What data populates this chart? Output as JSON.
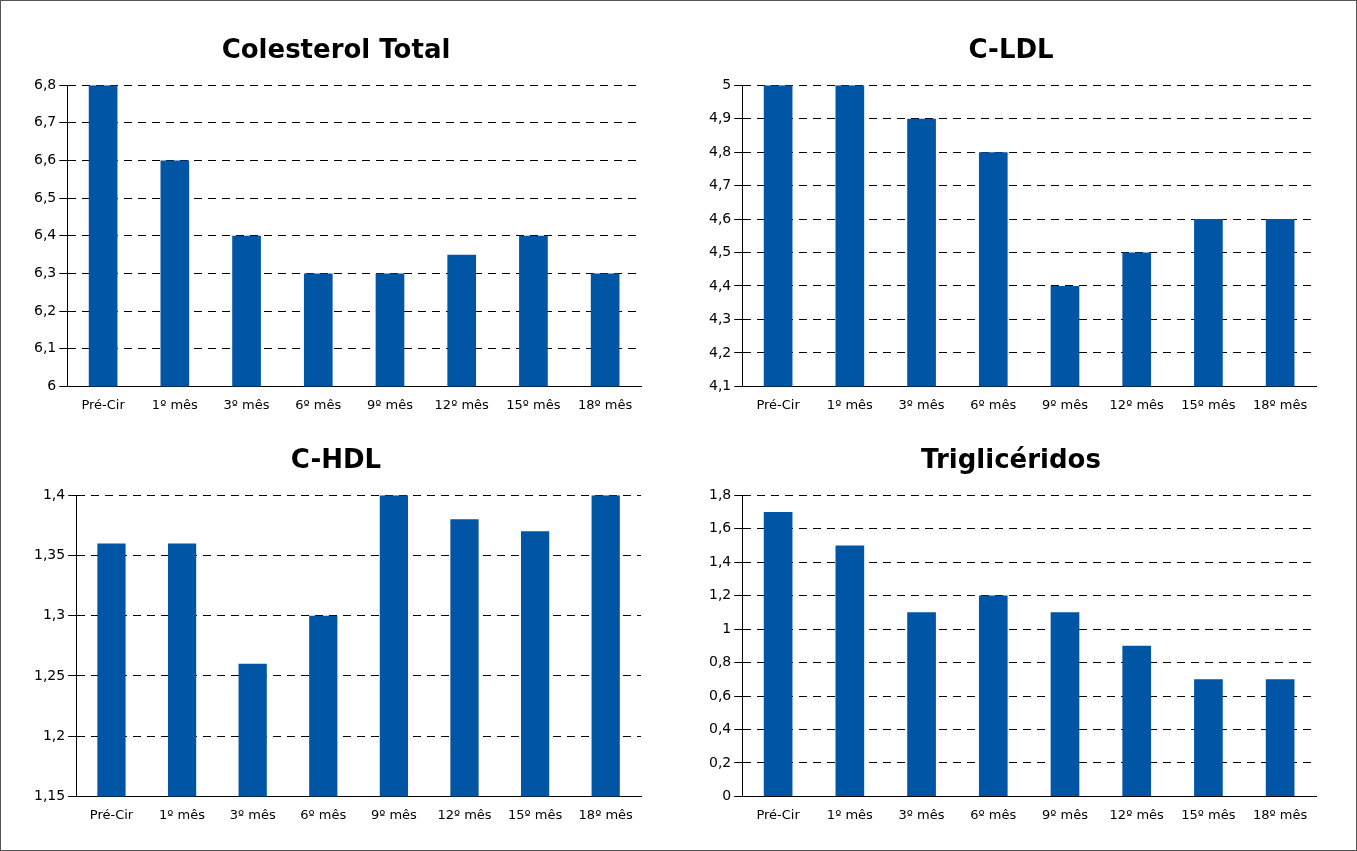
{
  "chart_data": [
    {
      "type": "bar",
      "title": "Colesterol Total",
      "categories": [
        "Pré-Cir",
        "1º mês",
        "3º mês",
        "6º mês",
        "9º mês",
        "12º mês",
        "15º mês",
        "18º mês"
      ],
      "values": [
        6.8,
        6.6,
        6.4,
        6.3,
        6.3,
        6.35,
        6.4,
        6.3
      ],
      "color": "#0055a5",
      "ylim": [
        6,
        6.8
      ],
      "yticks": [
        6,
        {
          "value": 6.1,
          "label": "6,1"
        },
        {
          "value": 6.2,
          "label": "6,2"
        },
        {
          "value": 6.3,
          "label": "6,3"
        },
        {
          "value": 6.4,
          "label": "6,4"
        },
        {
          "value": 6.5,
          "label": "6,5"
        },
        {
          "value": 6.6,
          "label": "6,6"
        },
        {
          "value": 6.7,
          "label": "6,7"
        },
        {
          "value": 6.8,
          "label": "6,8"
        }
      ],
      "grid": "y",
      "legend": false
    },
    {
      "type": "bar",
      "title": "C-LDL",
      "categories": [
        "Pré-Cir",
        "1º mês",
        "3º mês",
        "6º mês",
        "9º mês",
        "12º mês",
        "15º mês",
        "18º mês"
      ],
      "values": [
        5,
        5,
        4.9,
        4.8,
        4.4,
        4.5,
        4.6,
        4.6
      ],
      "color": "#0055a5",
      "ylim": [
        4.1,
        5
      ],
      "yticks": [
        {
          "value": 4.1,
          "label": "4,1"
        },
        {
          "value": 4.2,
          "label": "4,2"
        },
        {
          "value": 4.3,
          "label": "4,3"
        },
        {
          "value": 4.4,
          "label": "4,4"
        },
        {
          "value": 4.5,
          "label": "4,5"
        },
        {
          "value": 4.6,
          "label": "4,6"
        },
        {
          "value": 4.7,
          "label": "4,7"
        },
        {
          "value": 4.8,
          "label": "4,8"
        },
        {
          "value": 4.9,
          "label": "4,9"
        },
        5
      ],
      "grid": "y",
      "legend": false
    },
    {
      "type": "bar",
      "title": "C-HDL",
      "categories": [
        "Pré-Cir",
        "1º mês",
        "3º mês",
        "6º mês",
        "9º mês",
        "12º mês",
        "15º mês",
        "18º mês"
      ],
      "values": [
        1.36,
        1.36,
        1.26,
        1.3,
        1.4,
        1.38,
        1.37,
        1.4
      ],
      "color": "#0055a5",
      "ylim": [
        1.15,
        1.4
      ],
      "yticks": [
        {
          "value": 1.15,
          "label": "1,15"
        },
        {
          "value": 1.2,
          "label": "1,2"
        },
        {
          "value": 1.25,
          "label": "1,25"
        },
        {
          "value": 1.3,
          "label": "1,3"
        },
        {
          "value": 1.35,
          "label": "1,35"
        },
        {
          "value": 1.4,
          "label": "1,4"
        }
      ],
      "grid": "y",
      "legend": false
    },
    {
      "type": "bar",
      "title": "Triglicéridos",
      "categories": [
        "Pré-Cir",
        "1º mês",
        "3º mês",
        "6º mês",
        "9º mês",
        "12º mês",
        "15º mês",
        "18º mês"
      ],
      "values": [
        1.7,
        1.5,
        1.1,
        1.2,
        1.1,
        0.9,
        0.7,
        0.7
      ],
      "color": "#0055a5",
      "ylim": [
        0,
        1.8
      ],
      "yticks": [
        0,
        {
          "value": 0.2,
          "label": "0,2"
        },
        {
          "value": 0.4,
          "label": "0,4"
        },
        {
          "value": 0.6,
          "label": "0,6"
        },
        {
          "value": 0.8,
          "label": "0,8"
        },
        1,
        {
          "value": 1.2,
          "label": "1,2"
        },
        {
          "value": 1.4,
          "label": "1,4"
        },
        {
          "value": 1.6,
          "label": "1,6"
        },
        {
          "value": 1.8,
          "label": "1,8"
        }
      ],
      "grid": "y",
      "legend": false
    }
  ]
}
